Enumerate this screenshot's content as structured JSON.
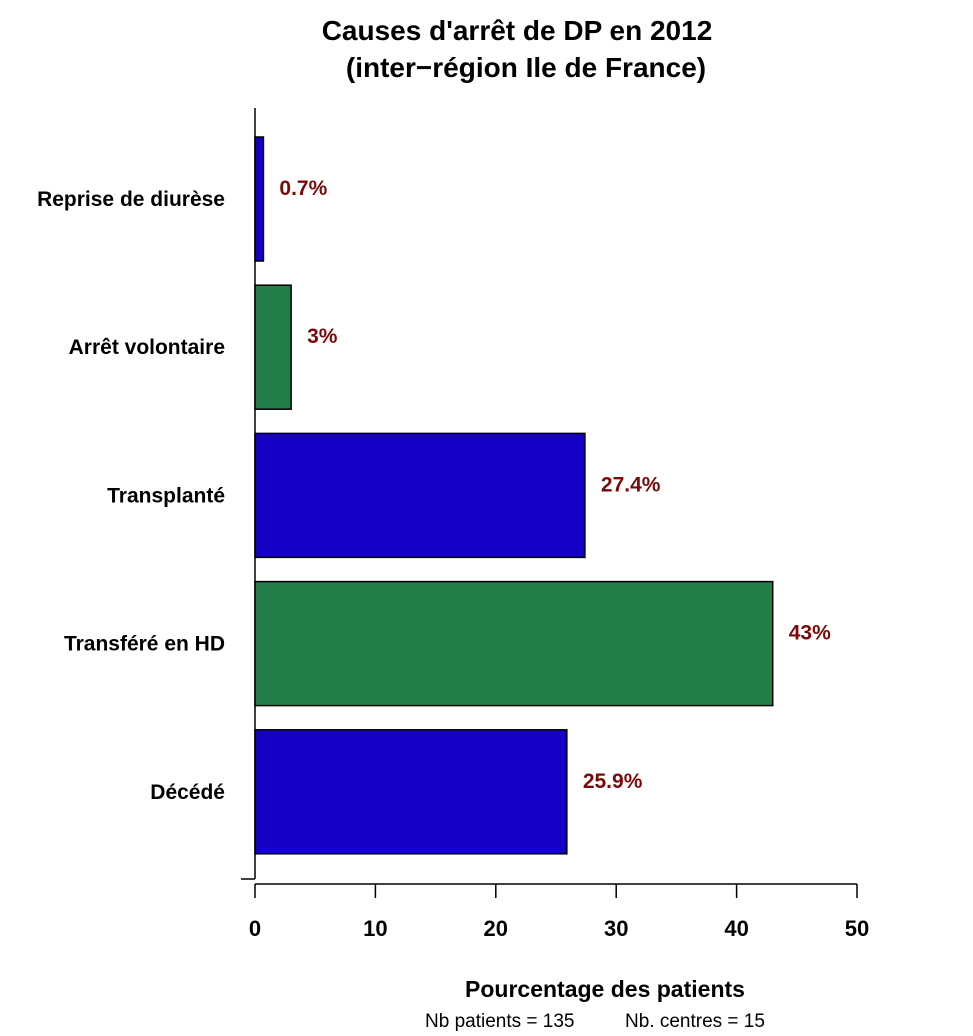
{
  "chart_data": {
    "type": "bar",
    "orientation": "horizontal",
    "title": "Causes d'arrêt de DP en 2012",
    "subtitle": "(inter−région Ile de France)",
    "xlabel": "Pourcentage des patients",
    "ylabel": "",
    "categories": [
      "Reprise de diurèse",
      "Arrêt volontaire",
      "Transplanté",
      "Transféré en HD",
      "Décédé"
    ],
    "values": [
      0.7,
      3,
      27.4,
      43,
      25.9
    ],
    "value_labels": [
      "0.7%",
      "3%",
      "27.4%",
      "43%",
      "25.9%"
    ],
    "bar_colors": [
      "#1400c4",
      "#237f4a",
      "#1400c4",
      "#237f4a",
      "#1400c4"
    ],
    "value_label_color": "#7a0a0a",
    "xlim": [
      0,
      50
    ],
    "xticks": [
      0,
      10,
      20,
      30,
      40,
      50
    ],
    "xtick_labels": [
      "0",
      "10",
      "20",
      "30",
      "40",
      "50"
    ],
    "grid": false,
    "legend": "none"
  },
  "footnote": {
    "patients": "Nb patients =  135",
    "centres": "Nb. centres =  15"
  }
}
